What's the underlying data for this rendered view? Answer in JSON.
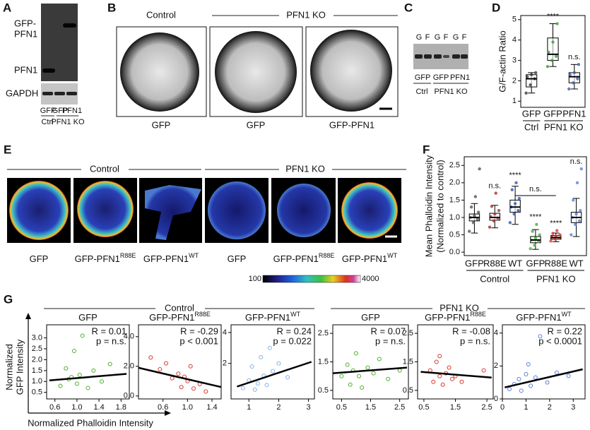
{
  "panel_letters": [
    "A",
    "B",
    "C",
    "D",
    "E",
    "F",
    "G"
  ],
  "panel_a": {
    "band_labels": [
      "GFP-",
      "PFN1",
      "PFN1",
      "GAPDH"
    ],
    "lanes": [
      "GFP",
      "GFP",
      "PFN1"
    ],
    "groups": [
      "Ctrl",
      "PFN1 KO"
    ]
  },
  "panel_b": {
    "groups": [
      "Control",
      "PFN1 KO"
    ],
    "captions": [
      "GFP",
      "GFP",
      "GFP-PFN1"
    ]
  },
  "panel_c": {
    "lane_letters": [
      "G",
      "F",
      "G",
      "F",
      "G",
      "F"
    ],
    "lanes": [
      "GFP",
      "GFP",
      "PFN1"
    ],
    "groups": [
      "Ctrl",
      "PFN1 KO"
    ]
  },
  "panel_e": {
    "groups": [
      "Control",
      "PFN1 KO"
    ],
    "captions": [
      {
        "text": "GFP"
      },
      {
        "text": "GFP-PFN1",
        "sup": "R88E"
      },
      {
        "text": "GFP-PFN1",
        "sup": "WT"
      },
      {
        "text": "GFP"
      },
      {
        "text": "GFP-PFN1",
        "sup": "R88E"
      },
      {
        "text": "GFP-PFN1",
        "sup": "WT"
      }
    ],
    "colorbar_ticks": [
      100,
      4000
    ]
  },
  "panel_g": {
    "groups": [
      "Control",
      "PFN1 KO"
    ],
    "ylabel": [
      "Normalized",
      "GFP Intensity"
    ],
    "xlabel": "Normalized Phalloidin Intensity"
  },
  "chart_data": [
    {
      "type": "box",
      "ylabel": [
        "G/F-actin Ratio"
      ],
      "categories": [
        "GFP",
        "GFP",
        "PFN1"
      ],
      "group_labels": [
        "Ctrl",
        "PFN1 KO"
      ],
      "ylim": [
        0.7,
        5.2
      ],
      "yticks": [
        1,
        2,
        3,
        4,
        5
      ],
      "min": [
        1.4,
        2.7,
        1.6
      ],
      "q1": [
        1.7,
        3.0,
        1.9
      ],
      "median": [
        2.1,
        3.3,
        2.2
      ],
      "q3": [
        2.3,
        4.1,
        2.4
      ],
      "max": [
        2.4,
        4.8,
        2.8
      ],
      "points": [
        [
          1.4,
          1.8,
          2.1,
          2.2,
          2.3,
          2.4
        ],
        [
          2.7,
          3.0,
          3.2,
          3.4,
          3.9,
          4.8
        ],
        [
          1.6,
          1.9,
          2.1,
          2.3,
          2.4,
          2.8
        ]
      ],
      "colors": [
        "#3a3a3a",
        "#3c9a3c",
        "#3b5fa8"
      ],
      "annotations": [
        null,
        "****",
        "n.s."
      ]
    },
    {
      "type": "box",
      "ylabel": [
        "Mean Phalloidin Intensity",
        "(Normalized to control)"
      ],
      "categories": [
        "GFP",
        "R88E",
        "WT",
        "GFP",
        "R88E",
        "WT"
      ],
      "group_labels": [
        "Control",
        "PFN1 KO"
      ],
      "ylim": [
        -0.1,
        2.75
      ],
      "yticks": [
        {
          "value": 0,
          "label": "0.0"
        },
        0.5,
        {
          "value": 1,
          "label": "1.0"
        },
        1.5,
        {
          "value": 2,
          "label": "2.0"
        },
        2.5
      ],
      "min": [
        0.55,
        0.7,
        0.8,
        0.08,
        0.3,
        0.45
      ],
      "q1": [
        0.9,
        0.92,
        1.15,
        0.27,
        0.37,
        0.85
      ],
      "median": [
        1.0,
        1.0,
        1.3,
        0.35,
        0.42,
        1.0
      ],
      "q3": [
        1.1,
        1.12,
        1.5,
        0.45,
        0.48,
        1.15
      ],
      "max": [
        1.4,
        1.35,
        1.9,
        0.65,
        0.55,
        1.55
      ],
      "points": [
        [
          0.6,
          0.85,
          0.95,
          1.0,
          1.05,
          1.15,
          1.3,
          1.6,
          2.4
        ],
        [
          0.72,
          0.9,
          0.98,
          1.02,
          1.1,
          1.2,
          1.32,
          1.7
        ],
        [
          0.85,
          1.1,
          1.2,
          1.3,
          1.4,
          1.55,
          1.8,
          2.0
        ],
        [
          0.1,
          0.2,
          0.3,
          0.35,
          0.4,
          0.5,
          0.6,
          0.8
        ],
        [
          0.32,
          0.38,
          0.4,
          0.43,
          0.46,
          0.5,
          0.54,
          0.62
        ],
        [
          0.5,
          0.8,
          0.9,
          1.0,
          1.1,
          1.2,
          1.5,
          2.0,
          2.4
        ]
      ],
      "colors": [
        "#555555",
        "#a83030",
        "#2f56b0",
        "#43b043",
        "#d43a2f",
        "#5b7fd8"
      ],
      "annotations": [
        null,
        "n.s.",
        "****",
        "****",
        "****",
        "n.s."
      ],
      "bracket_label": "n.s."
    },
    {
      "type": "scatter",
      "title": "GFP",
      "color": "#4caf2a",
      "xlim": [
        0.45,
        1.95
      ],
      "xticks": [
        0.6,
        {
          "value": 1,
          "label": "1.0"
        },
        1.4,
        1.8
      ],
      "ylim": [
        0.2,
        3.6
      ],
      "yticks": [
        0.5,
        {
          "value": 1,
          "label": "1.0"
        },
        1.5,
        {
          "value": 2,
          "label": "2.0"
        },
        2.5,
        {
          "value": 3,
          "label": "3.0"
        }
      ],
      "x": [
        0.7,
        0.8,
        0.85,
        0.95,
        1.0,
        1.05,
        1.1,
        1.2,
        1.3,
        1.45,
        1.6,
        0.9
      ],
      "y": [
        0.8,
        1.6,
        1.1,
        2.4,
        0.9,
        1.3,
        3.1,
        0.7,
        1.5,
        1.0,
        1.8,
        1.2
      ],
      "fit": {
        "x": [
          0.5,
          1.9
        ],
        "y": [
          1.05,
          1.35
        ]
      },
      "stats": [
        "R = 0.01",
        "p = n.s."
      ]
    },
    {
      "type": "scatter",
      "title": "GFP-PFN1",
      "title_sup": "R88E",
      "color": "#d7362b",
      "xlim": [
        0.2,
        1.55
      ],
      "xticks": [
        0.6,
        {
          "value": 1,
          "label": "1.0"
        },
        1.4
      ],
      "ylim": [
        -0.2,
        4.8
      ],
      "yticks": [
        {
          "value": 0,
          "label": "0.0"
        },
        {
          "value": 2,
          "label": "2.0"
        },
        {
          "value": 4,
          "label": "4.0"
        }
      ],
      "x": [
        0.4,
        0.55,
        0.65,
        0.75,
        0.85,
        0.9,
        1.0,
        1.05,
        1.1,
        1.2,
        1.3,
        0.95
      ],
      "y": [
        2.6,
        1.8,
        2.2,
        1.2,
        1.5,
        0.6,
        1.0,
        2.0,
        0.5,
        0.8,
        0.3,
        1.3
      ],
      "fit": {
        "x": [
          0.2,
          1.55
        ],
        "y": [
          1.9,
          0.6
        ]
      },
      "stats": [
        "R = -0.29",
        "p < 0.001"
      ]
    },
    {
      "type": "scatter",
      "title": "GFP-PFN1",
      "title_sup": "WT",
      "color": "#7fb0e8",
      "xlim": [
        0.4,
        3.2
      ],
      "xticks": [
        1,
        2,
        3
      ],
      "ylim": [
        -0.3,
        4.5
      ],
      "yticks": [
        2,
        4
      ],
      "x": [
        0.8,
        1.0,
        1.1,
        1.3,
        1.4,
        1.5,
        1.6,
        1.8,
        2.0,
        2.3,
        1.2,
        1.7
      ],
      "y": [
        0.4,
        0.9,
        1.8,
        0.7,
        2.4,
        1.2,
        0.6,
        1.5,
        2.0,
        1.1,
        0.3,
        3.0
      ],
      "fit": {
        "x": [
          0.6,
          3.1
        ],
        "y": [
          0.5,
          2.1
        ]
      },
      "stats": [
        "R = 0.24",
        "p = 0.022"
      ]
    },
    {
      "type": "scatter",
      "title": "GFP",
      "color": "#4caf2a",
      "xlim": [
        0.2,
        2.8
      ],
      "xticks": [
        0.5,
        1.5,
        2.5
      ],
      "ylim": [
        0.2,
        2.8
      ],
      "yticks": [
        0.5,
        1.5,
        2.5
      ],
      "x": [
        0.5,
        0.7,
        0.8,
        0.9,
        1.0,
        1.1,
        1.2,
        1.4,
        1.6,
        1.8,
        2.1,
        2.5
      ],
      "y": [
        1.0,
        1.4,
        0.7,
        1.2,
        1.8,
        1.0,
        0.6,
        1.3,
        1.1,
        1.6,
        0.9,
        1.2
      ],
      "fit": {
        "x": [
          0.2,
          2.75
        ],
        "y": [
          1.1,
          1.3
        ]
      },
      "stats": [
        "R = 0.07",
        "p = n.s."
      ]
    },
    {
      "type": "scatter",
      "title": "GFP-PFN1",
      "title_sup": "R88E",
      "color": "#d7362b",
      "xlim": [
        0.3,
        2.7
      ],
      "xticks": [
        0.5,
        1.5,
        2.5
      ],
      "ylim": [
        0.2,
        2.8
      ],
      "yticks": [
        0.5,
        1.5,
        2.5
      ],
      "x": [
        0.7,
        0.8,
        0.9,
        1.0,
        1.0,
        1.1,
        1.2,
        1.3,
        1.4,
        1.5,
        1.7,
        2.4
      ],
      "y": [
        1.2,
        0.8,
        1.5,
        1.0,
        1.7,
        0.7,
        1.1,
        1.3,
        0.9,
        1.0,
        0.8,
        1.2
      ],
      "fit": {
        "x": [
          0.4,
          2.65
        ],
        "y": [
          1.15,
          0.95
        ]
      },
      "stats": [
        "R = -0.08",
        "p = n.s."
      ]
    },
    {
      "type": "scatter",
      "title": "GFP-PFN1",
      "title_sup": "WT",
      "color": "#5b7fd8",
      "xlim": [
        0,
        3.5
      ],
      "xticks": [
        0,
        1,
        2,
        3
      ],
      "ylim": [
        0,
        4.5
      ],
      "yticks": [
        0,
        2,
        4
      ],
      "x": [
        0.3,
        0.5,
        0.7,
        0.8,
        1.0,
        1.1,
        1.2,
        1.4,
        1.6,
        1.9,
        2.3,
        2.8
      ],
      "y": [
        0.6,
        0.9,
        1.2,
        0.5,
        1.5,
        2.1,
        0.8,
        1.3,
        3.8,
        1.0,
        1.6,
        1.4
      ],
      "fit": {
        "x": [
          0.1,
          3.4
        ],
        "y": [
          0.7,
          1.8
        ]
      },
      "stats": [
        "R = 0.22",
        "p < 0.0001"
      ]
    }
  ]
}
